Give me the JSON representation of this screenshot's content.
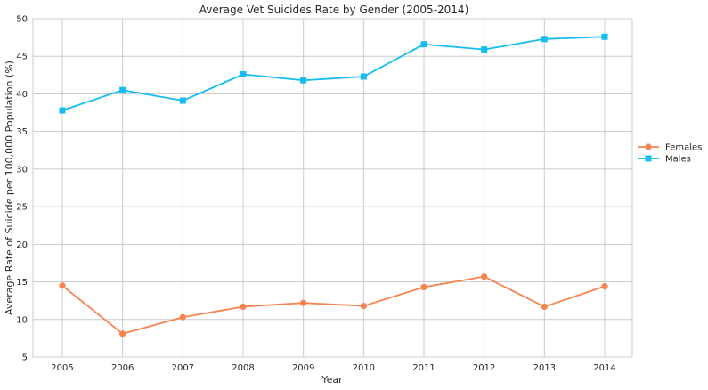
{
  "chart_data": {
    "type": "line",
    "title": "Average Vet Suicides Rate by Gender (2005-2014)",
    "xlabel": "Year",
    "ylabel": "Average Rate of Suicide per 100,000 Population (%)",
    "x": [
      "2005",
      "2006",
      "2007",
      "2008",
      "2009",
      "2010",
      "2011",
      "2012",
      "2013",
      "2014"
    ],
    "ylim": [
      5,
      50
    ],
    "yticks": [
      "5",
      "10",
      "15",
      "20",
      "25",
      "30",
      "35",
      "40",
      "45",
      "50"
    ],
    "grid": true,
    "legend_position": "right",
    "series": [
      {
        "name": "Females",
        "color": "#f7834f",
        "marker": "circle",
        "values": [
          14.5,
          8.1,
          10.3,
          11.7,
          12.2,
          11.8,
          14.3,
          15.7,
          11.7,
          14.4
        ]
      },
      {
        "name": "Males",
        "color": "#14bcf0",
        "marker": "square",
        "values": [
          37.8,
          40.5,
          39.1,
          42.6,
          41.8,
          42.3,
          46.6,
          45.9,
          47.3,
          47.6
        ]
      }
    ]
  }
}
